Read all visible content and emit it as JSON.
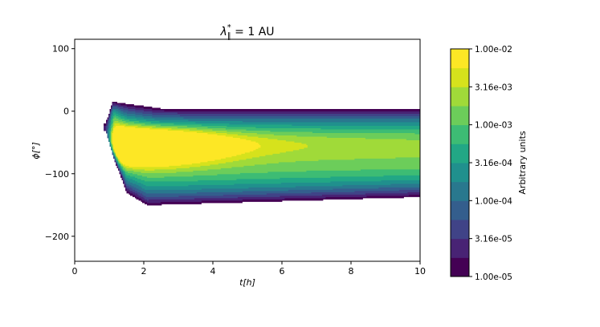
{
  "chart_data": {
    "type": "heatmap",
    "subtype": "filled-contour",
    "title": "λ∥* = 1 AU",
    "title_parts": {
      "symbol": "λ",
      "sub": "∥",
      "sup": "*",
      "rest": " = 1 AU"
    },
    "xlabel": "t[h]",
    "ylabel": "ϕ[°]",
    "xlim": [
      0,
      10
    ],
    "ylim": [
      -240,
      115
    ],
    "xticks": [
      0,
      2,
      4,
      6,
      8,
      10
    ],
    "yticks": [
      100,
      0,
      -100,
      -200
    ],
    "colorbar": {
      "label": "Arbitrary units",
      "scale": "log",
      "range": [
        1e-05,
        0.01
      ],
      "n_levels": 12,
      "tick_labels": [
        "1.00e-02",
        "3.16e-03",
        "1.00e-03",
        "3.16e-04",
        "1.00e-04",
        "3.16e-05",
        "1.00e-05"
      ],
      "colors": [
        "#440154",
        "#482374",
        "#404387",
        "#345e8d",
        "#29788e",
        "#20908d",
        "#22a785",
        "#3dbc74",
        "#6ccd5a",
        "#a0da39",
        "#d6e21c",
        "#fde725"
      ]
    },
    "distribution": {
      "onset_t": 0.9,
      "peak": {
        "t": 1.45,
        "phi": -57
      },
      "upper_edge_phi": [
        {
          "t": 0.9,
          "phi": -20
        },
        {
          "t": 1.1,
          "phi": 15
        },
        {
          "t": 2.5,
          "phi": 4
        },
        {
          "t": 10,
          "phi": 4
        }
      ],
      "lower_edge_phi": [
        {
          "t": 0.9,
          "phi": -30
        },
        {
          "t": 1.5,
          "phi": -130
        },
        {
          "t": 2.1,
          "phi": -150
        },
        {
          "t": 10,
          "phi": -137
        }
      ]
    }
  }
}
